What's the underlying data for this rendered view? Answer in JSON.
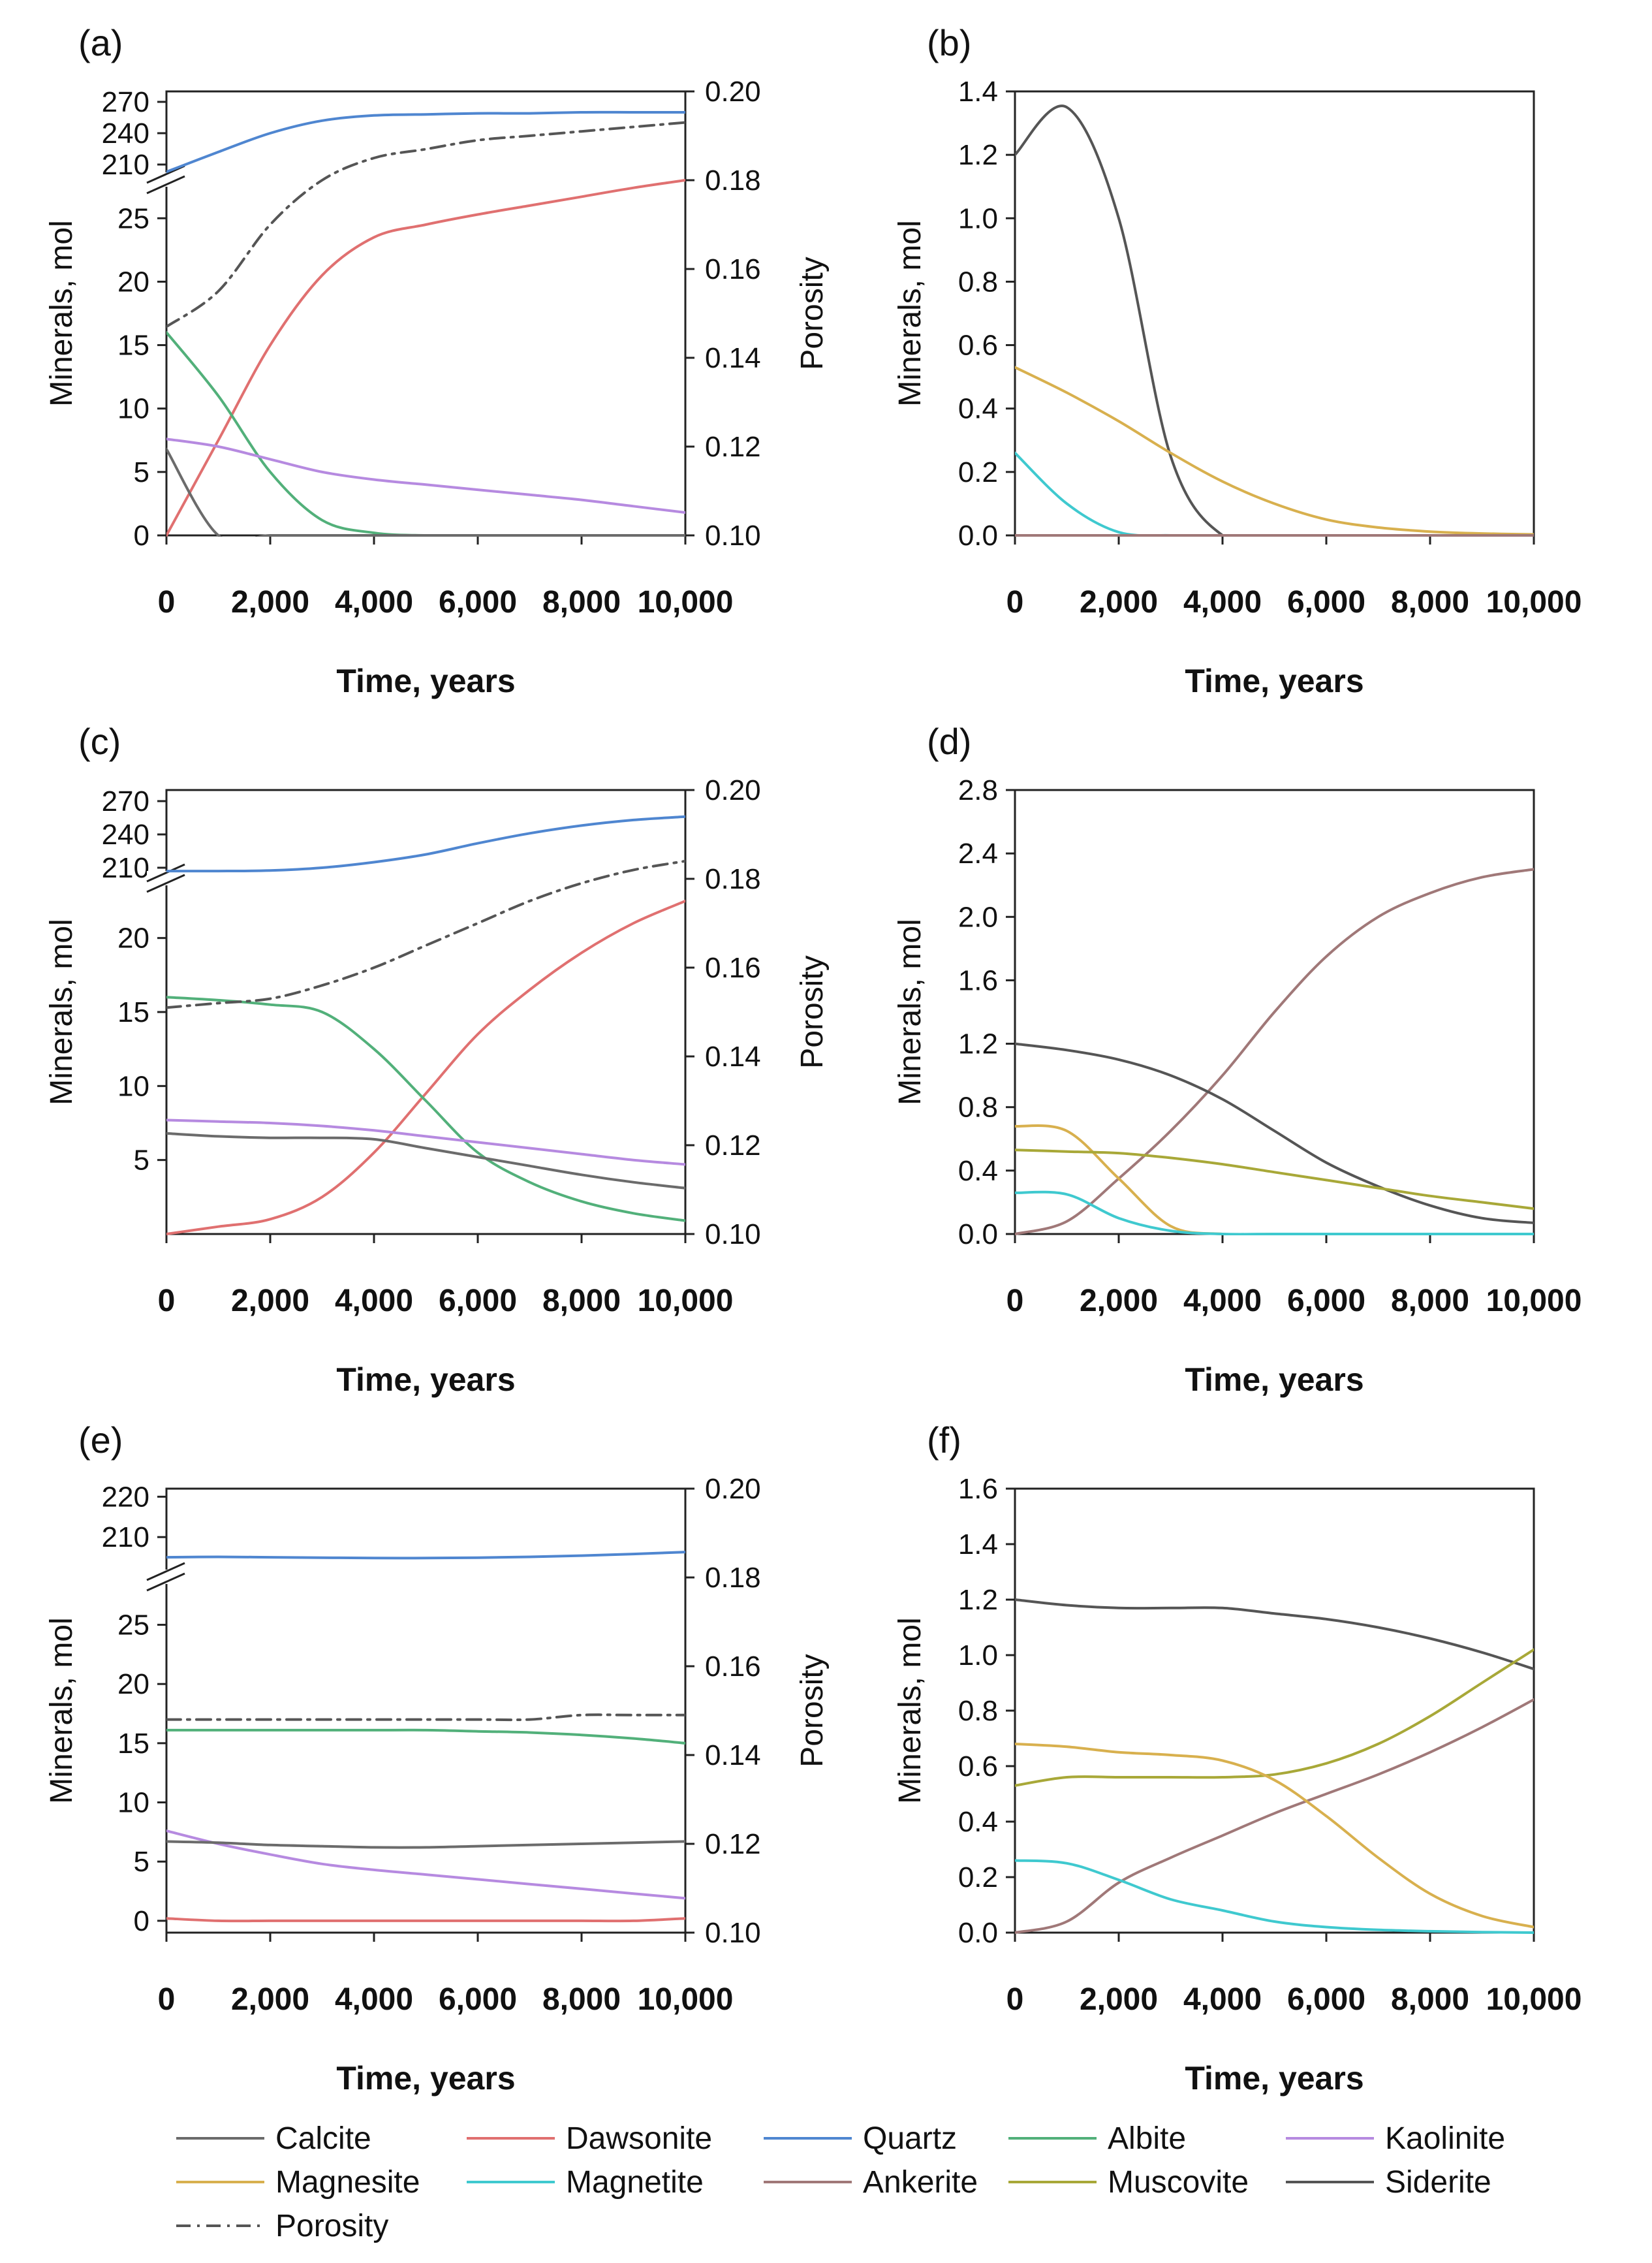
{
  "figure": {
    "legend": [
      {
        "name": "Calcite",
        "color": "#6b6b6b",
        "dash": "solid"
      },
      {
        "name": "Dawsonite",
        "color": "#e07070",
        "dash": "solid"
      },
      {
        "name": "Quartz",
        "color": "#4f86d0",
        "dash": "solid"
      },
      {
        "name": "Albite",
        "color": "#52b07a",
        "dash": "solid"
      },
      {
        "name": "Kaolinite",
        "color": "#b68ae0",
        "dash": "solid"
      },
      {
        "name": "Magnesite",
        "color": "#d8b04e",
        "dash": "solid"
      },
      {
        "name": "Magnetite",
        "color": "#3fc9cf",
        "dash": "solid"
      },
      {
        "name": "Ankerite",
        "color": "#a07878",
        "dash": "solid"
      },
      {
        "name": "Muscovite",
        "color": "#a8a838",
        "dash": "solid"
      },
      {
        "name": "Siderite",
        "color": "#555555",
        "dash": "solid"
      },
      {
        "name": "Porosity",
        "color": "#555555",
        "dash": "dashdot"
      }
    ]
  },
  "chart_data": [
    {
      "panel": "(a)",
      "type": "line",
      "xlabel": "Time, years",
      "ylabel": "Minerals, mol",
      "y2label": "Porosity",
      "xlim": [
        0,
        10000
      ],
      "xticks": [
        "0",
        "2,000",
        "4,000",
        "6,000",
        "8,000",
        "10,000"
      ],
      "yticks_lower": [
        "0",
        "5",
        "10",
        "15",
        "20",
        "25"
      ],
      "ylim_lower": [
        0,
        28
      ],
      "yticks_upper": [
        "210",
        "240",
        "270"
      ],
      "ylim_upper": [
        195,
        280
      ],
      "y2lim": [
        0.1,
        0.2
      ],
      "y2ticks": [
        "0.10",
        "0.12",
        "0.14",
        "0.16",
        "0.18",
        "0.20"
      ],
      "x": [
        0,
        1000,
        2000,
        3000,
        4000,
        5000,
        6000,
        7000,
        8000,
        9000,
        10000
      ],
      "series": [
        {
          "name": "Quartz",
          "axis": "y",
          "values": [
            203,
            222,
            240,
            252,
            257,
            258,
            259,
            259,
            260,
            260,
            260
          ]
        },
        {
          "name": "Dawsonite",
          "axis": "y",
          "values": [
            0,
            7.5,
            15,
            20.5,
            23.5,
            24.5,
            25.3,
            26,
            26.7,
            27.4,
            28
          ]
        },
        {
          "name": "Albite",
          "axis": "y",
          "values": [
            16,
            11,
            5,
            1.2,
            0.2,
            0,
            0,
            0,
            0,
            0,
            0
          ]
        },
        {
          "name": "Kaolinite",
          "axis": "y",
          "values": [
            7.6,
            7,
            6,
            5,
            4.4,
            4,
            3.6,
            3.2,
            2.8,
            2.3,
            1.8
          ]
        },
        {
          "name": "Calcite",
          "axis": "y",
          "values": [
            6.8,
            0,
            0,
            0,
            0,
            0,
            0,
            0,
            0,
            0,
            0
          ]
        },
        {
          "name": "Porosity",
          "axis": "y2",
          "values": [
            0.147,
            0.155,
            0.17,
            0.18,
            0.185,
            0.187,
            0.189,
            0.19,
            0.191,
            0.192,
            0.193
          ]
        }
      ]
    },
    {
      "panel": "(b)",
      "type": "line",
      "xlabel": "Time, years",
      "ylabel": "Minerals, mol",
      "xlim": [
        0,
        10000
      ],
      "xticks": [
        "0",
        "2,000",
        "4,000",
        "6,000",
        "8,000",
        "10,000"
      ],
      "ylim": [
        0,
        1.4
      ],
      "yticks": [
        "0.0",
        "0.2",
        "0.4",
        "0.6",
        "0.8",
        "1.0",
        "1.2",
        "1.4"
      ],
      "x": [
        0,
        1000,
        2000,
        3000,
        4000,
        5000,
        6000,
        7000,
        8000,
        9000,
        10000
      ],
      "series": [
        {
          "name": "Siderite",
          "values": [
            1.2,
            1.35,
            1.0,
            0.25,
            0.0,
            0.0,
            0.0,
            0.0,
            0.0,
            0.0,
            0.0
          ]
        },
        {
          "name": "Magnesite",
          "values": [
            0.53,
            0.45,
            0.36,
            0.26,
            0.17,
            0.1,
            0.05,
            0.025,
            0.012,
            0.006,
            0.003
          ]
        },
        {
          "name": "Magnetite",
          "values": [
            0.26,
            0.1,
            0.01,
            0.0,
            0.0,
            0.0,
            0.0,
            0.0,
            0.0,
            0.0,
            0.0
          ]
        },
        {
          "name": "Ankerite",
          "values": [
            0.0,
            0.0,
            0.0,
            0.0,
            0.0,
            0.0,
            0.0,
            0.0,
            0.0,
            0.0,
            0.0
          ]
        }
      ]
    },
    {
      "panel": "(c)",
      "type": "line",
      "xlabel": "Time, years",
      "ylabel": "Minerals, mol",
      "y2label": "Porosity",
      "xlim": [
        0,
        10000
      ],
      "xticks": [
        "0",
        "2,000",
        "4,000",
        "6,000",
        "8,000",
        "10,000"
      ],
      "yticks_lower": [
        "5",
        "10",
        "15",
        "20"
      ],
      "ylim_lower": [
        0,
        24
      ],
      "yticks_upper": [
        "210",
        "240",
        "270"
      ],
      "ylim_upper": [
        200,
        280
      ],
      "y2lim": [
        0.1,
        0.2
      ],
      "y2ticks": [
        "0.10",
        "0.12",
        "0.14",
        "0.16",
        "0.18",
        "0.20"
      ],
      "x": [
        0,
        1000,
        2000,
        3000,
        4000,
        5000,
        6000,
        7000,
        8000,
        9000,
        10000
      ],
      "series": [
        {
          "name": "Quartz",
          "axis": "y",
          "values": [
            207,
            207,
            207.5,
            210,
            215,
            222,
            232,
            241,
            248,
            253,
            256
          ]
        },
        {
          "name": "Dawsonite",
          "axis": "y",
          "values": [
            0,
            0.5,
            1,
            2.5,
            5.5,
            9.5,
            13.5,
            16.5,
            19,
            21,
            22.5
          ]
        },
        {
          "name": "Albite",
          "axis": "y",
          "values": [
            16,
            15.8,
            15.5,
            15,
            12.5,
            9,
            5.5,
            3.5,
            2.2,
            1.4,
            0.9
          ]
        },
        {
          "name": "Kaolinite",
          "axis": "y",
          "values": [
            7.7,
            7.6,
            7.5,
            7.3,
            7,
            6.6,
            6.2,
            5.8,
            5.4,
            5.0,
            4.7
          ]
        },
        {
          "name": "Calcite",
          "axis": "y",
          "values": [
            6.8,
            6.6,
            6.5,
            6.5,
            6.4,
            5.8,
            5.2,
            4.6,
            4.0,
            3.5,
            3.1
          ]
        },
        {
          "name": "Porosity",
          "axis": "y2",
          "values": [
            0.151,
            0.152,
            0.153,
            0.156,
            0.16,
            0.165,
            0.17,
            0.175,
            0.179,
            0.182,
            0.184
          ]
        }
      ]
    },
    {
      "panel": "(d)",
      "type": "line",
      "xlabel": "Time, years",
      "ylabel": "Minerals, mol",
      "xlim": [
        0,
        10000
      ],
      "xticks": [
        "0",
        "2,000",
        "4,000",
        "6,000",
        "8,000",
        "10,000"
      ],
      "ylim": [
        0,
        2.8
      ],
      "yticks": [
        "0.0",
        "0.4",
        "0.8",
        "1.2",
        "1.6",
        "2.0",
        "2.4",
        "2.8"
      ],
      "x": [
        0,
        1000,
        2000,
        3000,
        4000,
        5000,
        6000,
        7000,
        8000,
        9000,
        10000
      ],
      "series": [
        {
          "name": "Ankerite",
          "values": [
            0.0,
            0.08,
            0.35,
            0.65,
            1.0,
            1.4,
            1.75,
            2.0,
            2.15,
            2.25,
            2.3
          ]
        },
        {
          "name": "Siderite",
          "values": [
            1.2,
            1.16,
            1.1,
            1.0,
            0.85,
            0.65,
            0.45,
            0.3,
            0.18,
            0.1,
            0.07
          ]
        },
        {
          "name": "Magnesite",
          "values": [
            0.68,
            0.65,
            0.35,
            0.05,
            0.0,
            0.0,
            0.0,
            0.0,
            0.0,
            0.0,
            0.0
          ]
        },
        {
          "name": "Muscovite",
          "values": [
            0.53,
            0.52,
            0.51,
            0.48,
            0.44,
            0.39,
            0.34,
            0.29,
            0.24,
            0.2,
            0.16
          ]
        },
        {
          "name": "Magnetite",
          "values": [
            0.26,
            0.25,
            0.1,
            0.02,
            0.0,
            0.0,
            0.0,
            0.0,
            0.0,
            0.0,
            0.0
          ]
        }
      ]
    },
    {
      "panel": "(e)",
      "type": "line",
      "xlabel": "Time, years",
      "ylabel": "Minerals, mol",
      "y2label": "Porosity",
      "xlim": [
        0,
        10000
      ],
      "xticks": [
        "0",
        "2,000",
        "4,000",
        "6,000",
        "8,000",
        "10,000"
      ],
      "yticks_lower": [
        "0",
        "5",
        "10",
        "15",
        "20",
        "25"
      ],
      "ylim_lower": [
        -1,
        29
      ],
      "yticks_upper": [
        "210",
        "220"
      ],
      "ylim_upper": [
        200,
        222
      ],
      "y2lim": [
        0.1,
        0.2
      ],
      "y2ticks": [
        "0.10",
        "0.12",
        "0.14",
        "0.16",
        "0.18",
        "0.20"
      ],
      "x": [
        0,
        1000,
        2000,
        3000,
        4000,
        5000,
        6000,
        7000,
        8000,
        9000,
        10000
      ],
      "series": [
        {
          "name": "Quartz",
          "axis": "y",
          "values": [
            205,
            205.1,
            205,
            204.9,
            204.8,
            204.8,
            204.9,
            205.1,
            205.4,
            205.8,
            206.3
          ]
        },
        {
          "name": "Dawsonite",
          "axis": "y",
          "values": [
            0.2,
            0,
            0,
            0,
            0,
            0,
            0,
            0,
            0,
            0,
            0.2
          ]
        },
        {
          "name": "Albite",
          "axis": "y",
          "values": [
            16.1,
            16.1,
            16.1,
            16.1,
            16.1,
            16.1,
            16.0,
            15.9,
            15.7,
            15.4,
            15.0
          ]
        },
        {
          "name": "Kaolinite",
          "axis": "y",
          "values": [
            7.6,
            6.5,
            5.6,
            4.8,
            4.3,
            3.9,
            3.5,
            3.1,
            2.7,
            2.3,
            1.9
          ]
        },
        {
          "name": "Calcite",
          "axis": "y",
          "values": [
            6.7,
            6.6,
            6.4,
            6.3,
            6.2,
            6.2,
            6.3,
            6.4,
            6.5,
            6.6,
            6.7
          ]
        },
        {
          "name": "Porosity",
          "axis": "y2",
          "values": [
            0.148,
            0.148,
            0.148,
            0.148,
            0.148,
            0.148,
            0.148,
            0.148,
            0.149,
            0.149,
            0.149
          ]
        }
      ]
    },
    {
      "panel": "(f)",
      "type": "line",
      "xlabel": "Time, years",
      "ylabel": "Minerals, mol",
      "xlim": [
        0,
        10000
      ],
      "xticks": [
        "0",
        "2,000",
        "4,000",
        "6,000",
        "8,000",
        "10,000"
      ],
      "ylim": [
        0,
        1.6
      ],
      "yticks": [
        "0.0",
        "0.2",
        "0.4",
        "0.6",
        "0.8",
        "1.0",
        "1.2",
        "1.4",
        "1.6"
      ],
      "x": [
        0,
        1000,
        2000,
        3000,
        4000,
        5000,
        6000,
        7000,
        8000,
        9000,
        10000
      ],
      "series": [
        {
          "name": "Siderite",
          "values": [
            1.2,
            1.18,
            1.17,
            1.17,
            1.17,
            1.15,
            1.13,
            1.1,
            1.06,
            1.01,
            0.95
          ]
        },
        {
          "name": "Muscovite",
          "values": [
            0.53,
            0.56,
            0.56,
            0.56,
            0.56,
            0.57,
            0.61,
            0.68,
            0.78,
            0.9,
            1.02
          ]
        },
        {
          "name": "Ankerite",
          "values": [
            0.0,
            0.04,
            0.18,
            0.27,
            0.35,
            0.43,
            0.5,
            0.57,
            0.65,
            0.74,
            0.84
          ]
        },
        {
          "name": "Magnesite",
          "values": [
            0.68,
            0.67,
            0.65,
            0.64,
            0.62,
            0.55,
            0.42,
            0.27,
            0.14,
            0.06,
            0.02
          ]
        },
        {
          "name": "Magnetite",
          "values": [
            0.26,
            0.25,
            0.19,
            0.12,
            0.08,
            0.04,
            0.02,
            0.01,
            0.005,
            0.002,
            0.0
          ]
        }
      ]
    }
  ]
}
